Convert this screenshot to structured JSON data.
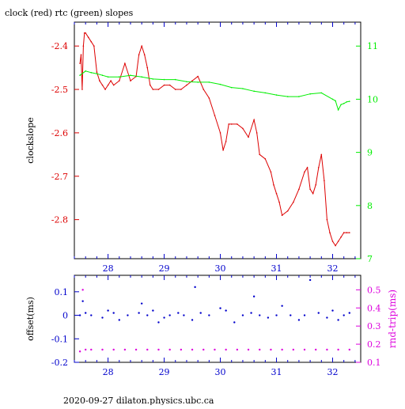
{
  "title": "clock (red) rtc (green) slopes",
  "footer": "2020-09-27  dilaton.physics.ubc.ca",
  "colors": {
    "red": "#dd0000",
    "green": "#00ee00",
    "blue": "#0000cc",
    "magenta": "#dd00dd",
    "black": "#000000"
  },
  "chart_data": [
    {
      "type": "line",
      "title": "clock (red) rtc (green) slopes",
      "ylabel": "clockslope",
      "xlim": [
        27.4,
        32.5
      ],
      "ylim": [
        -2.89,
        -2.345
      ],
      "y2lim": [
        7.0,
        11.45
      ],
      "grid": false,
      "x_ticks": [
        28,
        29,
        30,
        31,
        32
      ],
      "x_tick_labels": [
        "28",
        "29",
        "30",
        "31",
        "32"
      ],
      "y_ticks": [
        -2.4,
        -2.5,
        -2.6,
        -2.7,
        -2.8
      ],
      "y_tick_labels": [
        "-2.4",
        "-2.5",
        "-2.6",
        "-2.7",
        "-2.8"
      ],
      "y2_ticks": [
        7,
        8,
        9,
        10,
        11
      ],
      "y2_tick_labels": [
        "7",
        "8",
        "9",
        "10",
        "11"
      ],
      "series": [
        {
          "axis": "left",
          "x": [
            27.5,
            27.52,
            27.54,
            27.56,
            27.58,
            27.6,
            27.65,
            27.7,
            27.75,
            27.8,
            27.85,
            27.9,
            27.95,
            28.0,
            28.05,
            28.1,
            28.2,
            28.3,
            28.4,
            28.5,
            28.55,
            28.6,
            28.65,
            28.7,
            28.75,
            28.8,
            28.9,
            29.0,
            29.1,
            29.2,
            29.3,
            29.4,
            29.5,
            29.6,
            29.7,
            29.8,
            29.9,
            30.0,
            30.05,
            30.1,
            30.15,
            30.2,
            30.3,
            30.4,
            30.5,
            30.6,
            30.65,
            30.7,
            30.8,
            30.9,
            30.95,
            31.0,
            31.05,
            31.1,
            31.2,
            31.3,
            31.4,
            31.5,
            31.55,
            31.6,
            31.65,
            31.7,
            31.75,
            31.8,
            31.85,
            31.9,
            31.95,
            32.0,
            32.05,
            32.1,
            32.15,
            32.2,
            32.25,
            32.3
          ],
          "values": [
            -2.44,
            -2.42,
            -2.5,
            -2.4,
            -2.37,
            -2.37,
            -2.38,
            -2.39,
            -2.4,
            -2.46,
            -2.48,
            -2.49,
            -2.5,
            -2.49,
            -2.48,
            -2.49,
            -2.48,
            -2.44,
            -2.48,
            -2.47,
            -2.42,
            -2.4,
            -2.42,
            -2.45,
            -2.49,
            -2.5,
            -2.5,
            -2.49,
            -2.49,
            -2.5,
            -2.5,
            -2.49,
            -2.48,
            -2.47,
            -2.5,
            -2.52,
            -2.56,
            -2.6,
            -2.64,
            -2.62,
            -2.58,
            -2.58,
            -2.58,
            -2.59,
            -2.61,
            -2.57,
            -2.6,
            -2.65,
            -2.66,
            -2.69,
            -2.72,
            -2.74,
            -2.76,
            -2.79,
            -2.78,
            -2.76,
            -2.73,
            -2.69,
            -2.68,
            -2.73,
            -2.74,
            -2.72,
            -2.68,
            -2.65,
            -2.71,
            -2.8,
            -2.83,
            -2.85,
            -2.86,
            -2.85,
            -2.84,
            -2.83,
            -2.83,
            -2.83
          ]
        },
        {
          "axis": "right",
          "x": [
            27.5,
            27.6,
            27.7,
            27.8,
            27.9,
            28.0,
            28.2,
            28.4,
            28.6,
            28.8,
            29.0,
            29.2,
            29.4,
            29.6,
            29.8,
            30.0,
            30.2,
            30.4,
            30.6,
            30.8,
            31.0,
            31.2,
            31.4,
            31.6,
            31.8,
            32.0,
            32.05,
            32.1,
            32.15,
            32.2,
            32.25,
            32.3
          ],
          "values": [
            10.45,
            10.53,
            10.5,
            10.48,
            10.45,
            10.42,
            10.42,
            10.45,
            10.42,
            10.38,
            10.37,
            10.37,
            10.33,
            10.32,
            10.32,
            10.28,
            10.22,
            10.2,
            10.15,
            10.12,
            10.08,
            10.05,
            10.05,
            10.1,
            10.12,
            10.0,
            9.97,
            9.8,
            9.9,
            9.92,
            9.95,
            9.96
          ]
        }
      ]
    },
    {
      "type": "scatter",
      "ylabel": "offset(ms)",
      "y2label": "rnd-trip(ms)",
      "xlim": [
        27.4,
        32.5
      ],
      "ylim": [
        -0.2,
        0.17
      ],
      "y2lim": [
        0.1,
        0.58
      ],
      "grid": false,
      "x_ticks": [
        28,
        29,
        30,
        31,
        32
      ],
      "x_tick_labels": [
        "28",
        "29",
        "30",
        "31",
        "32"
      ],
      "y_ticks": [
        0.1,
        0,
        -0.1,
        -0.2
      ],
      "y_tick_labels": [
        "0.1",
        "0",
        "-0.1",
        "-0.2"
      ],
      "y2_ticks": [
        0.5,
        0.4,
        0.3,
        0.2,
        0.1
      ],
      "y2_tick_labels": [
        "0.5",
        "0.4",
        "0.3",
        "0.2",
        "0.1"
      ],
      "series": [
        {
          "axis": "left",
          "x": [
            27.5,
            27.55,
            27.6,
            27.7,
            27.9,
            28.0,
            28.1,
            28.2,
            28.35,
            28.55,
            28.6,
            28.7,
            28.8,
            28.9,
            29.0,
            29.1,
            29.25,
            29.35,
            29.5,
            29.55,
            29.65,
            29.8,
            30.0,
            30.1,
            30.25,
            30.4,
            30.55,
            30.6,
            30.7,
            30.85,
            31.0,
            31.1,
            31.25,
            31.4,
            31.5,
            31.6,
            31.75,
            31.9,
            32.0,
            32.1,
            32.2,
            32.3
          ],
          "values": [
            0.0,
            0.06,
            0.01,
            0.0,
            -0.01,
            0.02,
            0.01,
            -0.02,
            0.0,
            0.01,
            0.05,
            0.0,
            0.02,
            -0.03,
            -0.01,
            0.0,
            0.01,
            0.0,
            -0.02,
            0.12,
            0.01,
            0.0,
            0.03,
            0.02,
            -0.03,
            0.0,
            0.01,
            0.08,
            0.0,
            -0.01,
            0.0,
            0.04,
            0.0,
            -0.02,
            0.0,
            0.15,
            0.01,
            -0.01,
            0.02,
            -0.02,
            0.0,
            0.01
          ]
        },
        {
          "axis": "right",
          "x": [
            27.5,
            27.55,
            27.6,
            27.7,
            27.9,
            28.1,
            28.3,
            28.5,
            28.7,
            28.9,
            29.1,
            29.3,
            29.5,
            29.7,
            29.9,
            30.1,
            30.3,
            30.5,
            30.7,
            30.9,
            31.1,
            31.3,
            31.5,
            31.7,
            31.9,
            32.1,
            32.3
          ],
          "values": [
            0.16,
            0.5,
            0.17,
            0.17,
            0.17,
            0.17,
            0.17,
            0.17,
            0.17,
            0.17,
            0.17,
            0.17,
            0.17,
            0.17,
            0.17,
            0.17,
            0.17,
            0.17,
            0.17,
            0.17,
            0.17,
            0.17,
            0.17,
            0.17,
            0.17,
            0.17,
            0.17
          ]
        }
      ]
    }
  ]
}
